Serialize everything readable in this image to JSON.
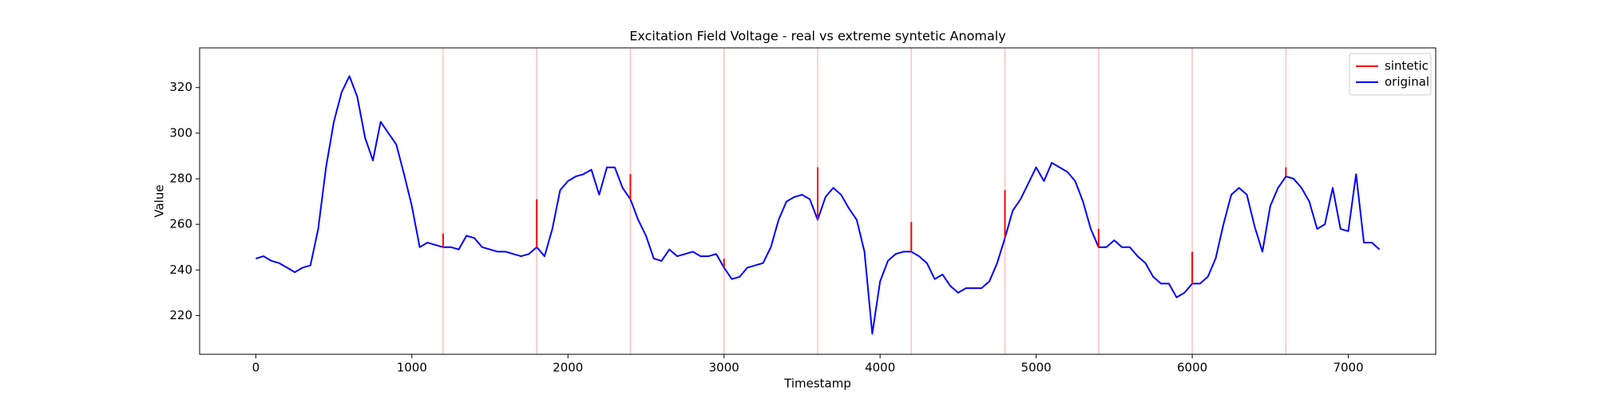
{
  "chart_data": {
    "type": "line",
    "title": "Excitation Field Voltage - real vs extreme syntetic Anomaly",
    "x_label": "Timestamp",
    "y_label": "Value",
    "xlim": [
      -360,
      7560
    ],
    "ylim": [
      203,
      337.4
    ],
    "xticks": [
      0,
      1000,
      2000,
      3000,
      4000,
      5000,
      6000,
      7000
    ],
    "yticks": [
      220,
      240,
      260,
      280,
      300,
      320
    ],
    "legend": "upper right",
    "series": [
      {
        "name": "sintetic",
        "color": "red",
        "x": [
          1200,
          1800,
          2400,
          3000,
          3600,
          4200,
          4800,
          5400,
          6000,
          6600
        ],
        "values": [
          256,
          271,
          282,
          245,
          285,
          261,
          275,
          258,
          248,
          285
        ]
      },
      {
        "name": "original",
        "color": "blue",
        "x": [
          0,
          50,
          100,
          150,
          200,
          250,
          300,
          350,
          400,
          450,
          500,
          550,
          600,
          650,
          700,
          750,
          800,
          850,
          900,
          950,
          1000,
          1050,
          1100,
          1150,
          1200,
          1250,
          1300,
          1350,
          1400,
          1450,
          1500,
          1550,
          1600,
          1650,
          1700,
          1750,
          1800,
          1850,
          1900,
          1950,
          2000,
          2050,
          2100,
          2150,
          2200,
          2250,
          2300,
          2350,
          2400,
          2450,
          2500,
          2550,
          2600,
          2650,
          2700,
          2750,
          2800,
          2850,
          2900,
          2950,
          3000,
          3050,
          3100,
          3150,
          3200,
          3250,
          3300,
          3350,
          3400,
          3450,
          3500,
          3550,
          3600,
          3650,
          3700,
          3750,
          3800,
          3850,
          3900,
          3950,
          4000,
          4050,
          4100,
          4150,
          4200,
          4250,
          4300,
          4350,
          4400,
          4450,
          4500,
          4550,
          4600,
          4650,
          4700,
          4750,
          4800,
          4850,
          4900,
          4950,
          5000,
          5050,
          5100,
          5150,
          5200,
          5250,
          5300,
          5350,
          5400,
          5450,
          5500,
          5550,
          5600,
          5650,
          5700,
          5750,
          5800,
          5850,
          5900,
          5950,
          6000,
          6050,
          6100,
          6150,
          6200,
          6250,
          6300,
          6350,
          6400,
          6450,
          6500,
          6550,
          6600,
          6650,
          6700,
          6750,
          6800,
          6850,
          6900,
          6950,
          7000,
          7050,
          7100,
          7150,
          7200
        ],
        "values": [
          245,
          246,
          244,
          243,
          241,
          239,
          241,
          242,
          258,
          285,
          305,
          318,
          325,
          316,
          298,
          288,
          305,
          300,
          295,
          282,
          268,
          250,
          252,
          251,
          250,
          250,
          249,
          255,
          254,
          250,
          249,
          248,
          248,
          247,
          246,
          247,
          250,
          246,
          258,
          275,
          279,
          281,
          282,
          284,
          273,
          285,
          285,
          276,
          271,
          262,
          255,
          245,
          244,
          249,
          246,
          247,
          248,
          246,
          246,
          247,
          241,
          236,
          237,
          241,
          242,
          243,
          250,
          262,
          270,
          272,
          273,
          271,
          262,
          272,
          276,
          273,
          267,
          262,
          248,
          212,
          235,
          244,
          247,
          248,
          248,
          246,
          243,
          236,
          238,
          233,
          230,
          232,
          232,
          232,
          235,
          243,
          254,
          266,
          271,
          278,
          285,
          279,
          287,
          285,
          283,
          279,
          270,
          258,
          250,
          250,
          253,
          250,
          250,
          246,
          243,
          237,
          234,
          234,
          228,
          230,
          234,
          234,
          237,
          245,
          260,
          273,
          276,
          273,
          259,
          248,
          268,
          276,
          281,
          280,
          276,
          270,
          258,
          260,
          276,
          258,
          257,
          282,
          252,
          252,
          249
        ]
      }
    ]
  }
}
